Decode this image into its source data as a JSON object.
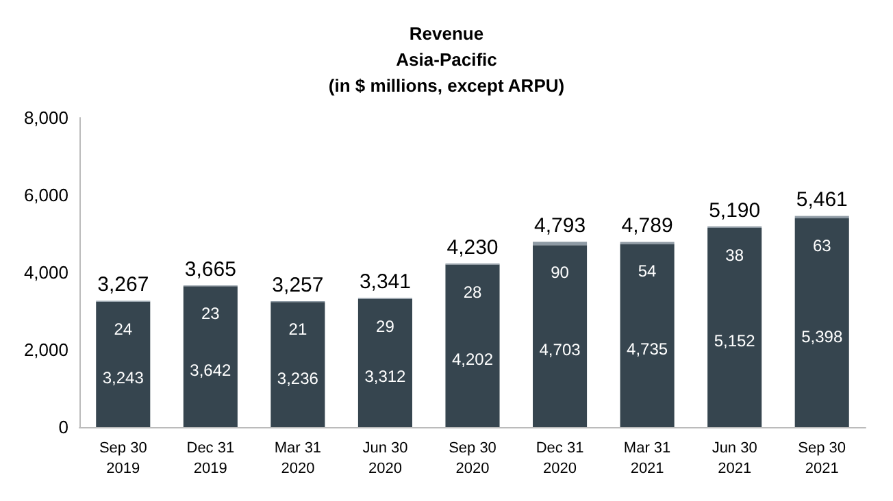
{
  "chart_data": {
    "type": "bar",
    "title": "Revenue\nAsia-Pacific\n(in $ millions, except ARPU)",
    "categories": [
      "Sep 30\n2019",
      "Dec 31\n2019",
      "Mar 31\n2020",
      "Jun 30\n2020",
      "Sep 30\n2020",
      "Dec 31\n2020",
      "Mar 31\n2021",
      "Jun 30\n2021",
      "Sep 30\n2021"
    ],
    "series": [
      {
        "color": "#36454f",
        "values": [
          3243,
          3642,
          3236,
          3312,
          4202,
          4703,
          4735,
          5152,
          5398
        ],
        "value_labels": [
          "3,243",
          "3,642",
          "3,236",
          "3,312",
          "4,202",
          "4,703",
          "4,735",
          "5,152",
          "5,398"
        ]
      },
      {
        "color": "#8e9aa4",
        "values": [
          24,
          23,
          21,
          29,
          28,
          90,
          54,
          38,
          63
        ]
      }
    ],
    "stacked": true,
    "totals": [
      "3,267",
      "3,665",
      "3,257",
      "3,341",
      "4,230",
      "4,793",
      "4,789",
      "5,190",
      "5,461"
    ],
    "data_labels": true,
    "ylim": [
      0,
      8000
    ],
    "yticks": [
      {
        "value": 0,
        "label": "0"
      },
      {
        "value": 2000,
        "label": "2,000"
      },
      {
        "value": 4000,
        "label": "4,000"
      },
      {
        "value": 6000,
        "label": "6,000"
      },
      {
        "value": 8000,
        "label": "8,000"
      }
    ],
    "grid": false
  }
}
